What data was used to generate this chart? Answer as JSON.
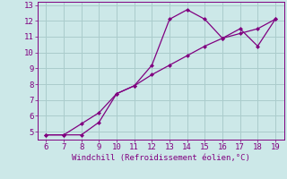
{
  "xlabel": "Windchill (Refroidissement éolien,°C)",
  "line1_x": [
    6,
    7,
    8,
    9,
    10,
    11,
    12,
    13,
    14,
    15,
    16,
    17,
    18,
    19
  ],
  "line1_y": [
    4.8,
    4.8,
    4.8,
    5.6,
    7.4,
    7.9,
    9.2,
    12.1,
    12.7,
    12.1,
    10.9,
    11.5,
    10.4,
    12.1
  ],
  "line2_x": [
    6,
    7,
    8,
    9,
    10,
    11,
    12,
    13,
    14,
    15,
    16,
    17,
    18,
    19
  ],
  "line2_y": [
    4.8,
    4.8,
    5.5,
    6.2,
    7.4,
    7.9,
    8.6,
    9.2,
    9.8,
    10.4,
    10.9,
    11.2,
    11.5,
    12.1
  ],
  "line_color": "#800080",
  "bg_color": "#cce8e8",
  "grid_color": "#aacccc",
  "xlim": [
    5.5,
    19.5
  ],
  "ylim": [
    4.5,
    13.2
  ],
  "xticks": [
    6,
    7,
    8,
    9,
    10,
    11,
    12,
    13,
    14,
    15,
    16,
    17,
    18,
    19
  ],
  "yticks": [
    5,
    6,
    7,
    8,
    9,
    10,
    11,
    12,
    13
  ],
  "tick_fontsize": 6.5,
  "xlabel_fontsize": 6.5
}
